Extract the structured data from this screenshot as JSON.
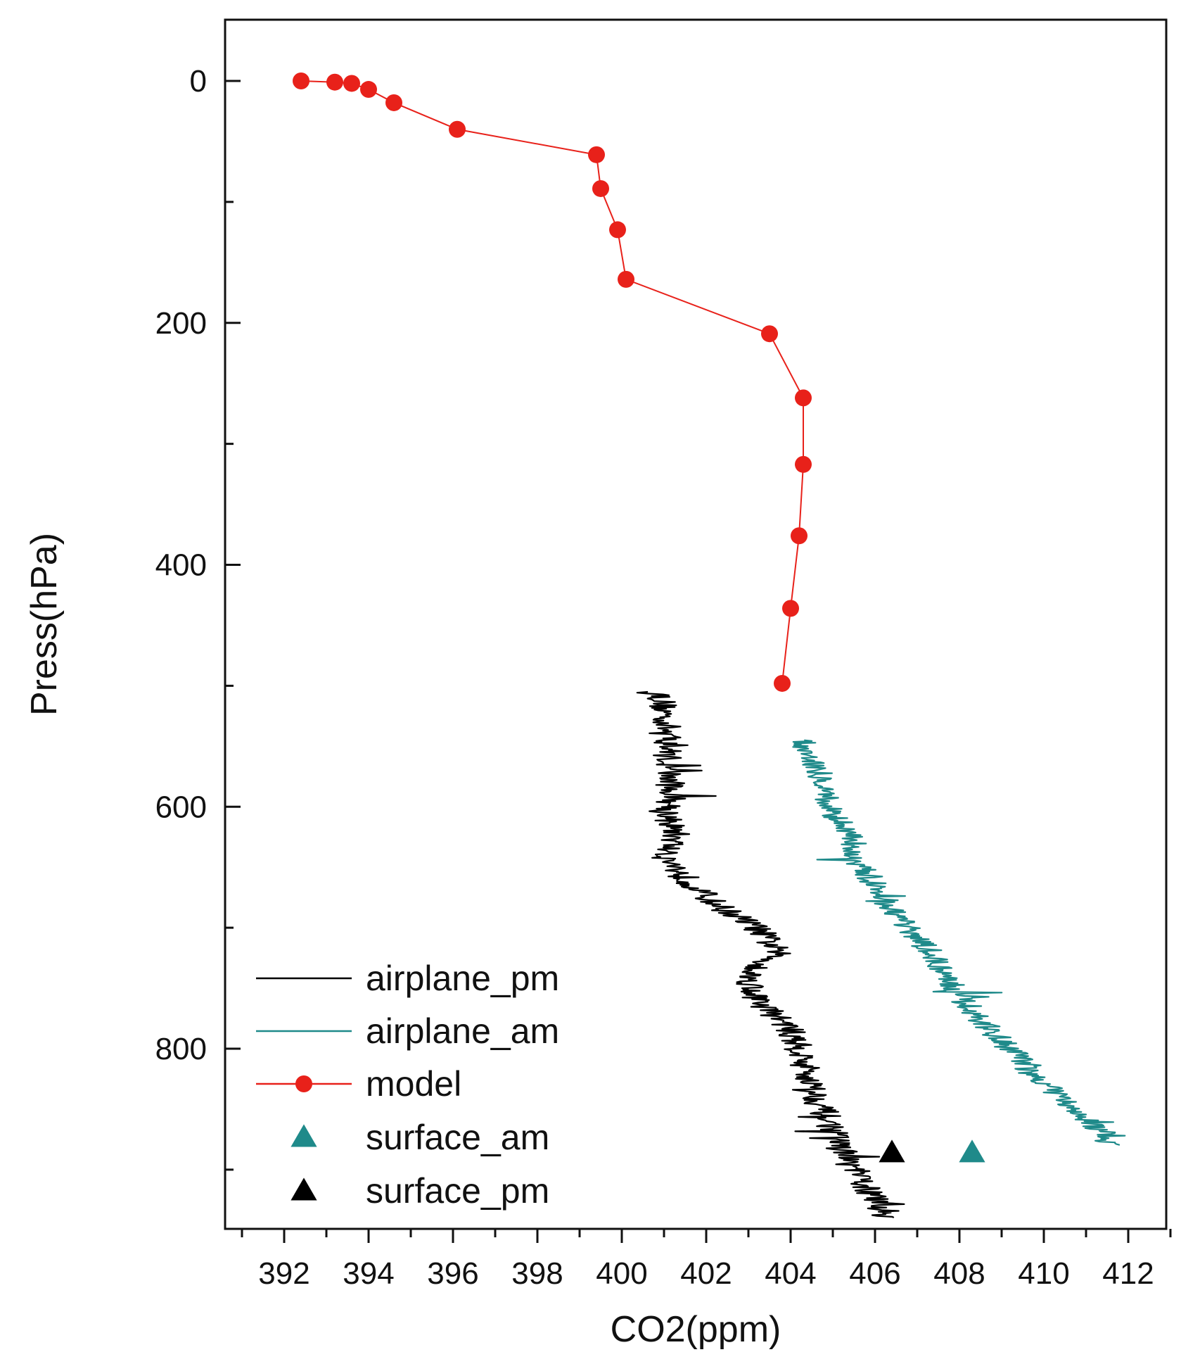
{
  "chart_data": {
    "type": "line",
    "title": "",
    "xlabel": "CO2(ppm)",
    "ylabel": "Press(hPa)",
    "xlim": [
      391,
      413
    ],
    "ylim": [
      -50,
      950
    ],
    "y_inverted": true,
    "x_ticks": [
      392,
      394,
      396,
      398,
      400,
      402,
      404,
      406,
      408,
      410,
      412
    ],
    "y_ticks": [
      0,
      200,
      400,
      600,
      800
    ],
    "legend_position": "bottom-left",
    "series": [
      {
        "name": "airplane_pm",
        "kind": "line",
        "color": "#000000",
        "x": [
          400.9,
          401.0,
          401.1,
          401.1,
          401.2,
          401.1,
          401.3,
          401.0,
          401.4,
          401.7,
          402.2,
          403.2,
          403.7,
          403.0,
          403.2,
          403.9,
          404.2,
          404.4,
          404.6,
          404.9,
          405.1,
          405.3,
          405.5,
          405.7,
          405.9,
          406.1,
          406.3
        ],
        "y": [
          505,
          520,
          545,
          570,
          590,
          610,
          625,
          640,
          655,
          665,
          680,
          700,
          720,
          740,
          760,
          780,
          800,
          820,
          840,
          860,
          875,
          890,
          900,
          910,
          920,
          930,
          940
        ]
      },
      {
        "name": "airplane_am",
        "kind": "line",
        "color": "#1f8a8a",
        "x": [
          404.3,
          404.5,
          404.8,
          404.9,
          405.2,
          405.5,
          405.6,
          405.9,
          406.2,
          406.5,
          406.9,
          407.3,
          407.7,
          408.1,
          408.6,
          409.2,
          409.7,
          410.2,
          410.7,
          411.1,
          411.4,
          411.6
        ],
        "y": [
          545,
          560,
          580,
          600,
          615,
          630,
          645,
          660,
          675,
          690,
          705,
          720,
          740,
          760,
          780,
          800,
          820,
          835,
          850,
          860,
          870,
          880
        ]
      },
      {
        "name": "model",
        "kind": "line-marker",
        "color": "#e8211a",
        "x": [
          392.4,
          393.2,
          393.6,
          394.0,
          394.6,
          396.1,
          399.4,
          399.5,
          399.9,
          400.1,
          403.5,
          404.3,
          404.3,
          404.2,
          404.0,
          403.8
        ],
        "y": [
          0,
          1,
          2,
          7,
          18,
          40,
          61,
          89,
          123,
          164,
          209,
          262,
          317,
          376,
          436,
          498
        ]
      },
      {
        "name": "surface_am",
        "kind": "marker",
        "color": "#1f8a8a",
        "x": [
          408.3
        ],
        "y": [
          886
        ]
      },
      {
        "name": "surface_pm",
        "kind": "marker",
        "color": "#000000",
        "x": [
          406.4
        ],
        "y": [
          886
        ]
      }
    ]
  }
}
